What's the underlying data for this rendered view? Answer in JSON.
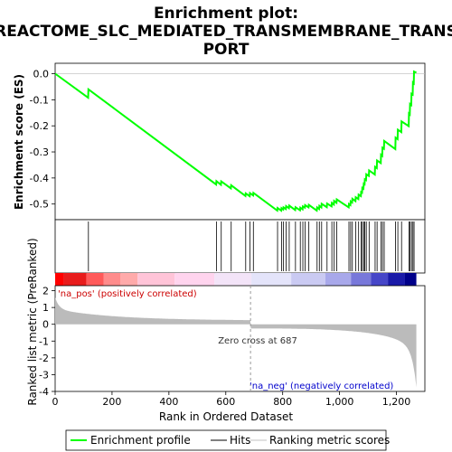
{
  "chart_data": {
    "type": "line",
    "title_line1": "Enrichment plot:",
    "title_line2": "REACTOME_SLC_MEDIATED_TRANSMEMBRANE_TRANS",
    "title_line3": "PORT",
    "xlabel": "Rank in Ordered Dataset",
    "ylabel_top": "Enrichment score (ES)",
    "ylabel_bottom": "Ranked list metric (PreRanked)",
    "xlim": [
      0,
      1300
    ],
    "x_ticks": [
      "0",
      "200",
      "400",
      "600",
      "800",
      "1,000",
      "1,200"
    ],
    "x_tick_values": [
      0,
      200,
      400,
      600,
      800,
      1000,
      1200
    ],
    "es_ylim": [
      -0.56,
      0.04
    ],
    "es_ticks": [
      "0.0",
      "-0.1",
      "-0.2",
      "-0.3",
      "-0.4",
      "-0.5"
    ],
    "es_tick_values": [
      0,
      -0.1,
      -0.2,
      -0.3,
      -0.4,
      -0.5
    ],
    "metric_ylim": [
      -4,
      2.3
    ],
    "metric_ticks": [
      "2",
      "1",
      "0",
      "-1",
      "-2",
      "-3",
      "-4"
    ],
    "metric_tick_values": [
      2,
      1,
      0,
      -1,
      -2,
      -3,
      -4
    ],
    "pos_label": "'na_pos' (positively correlated)",
    "neg_label": "'na_neg' (negatively correlated)",
    "zero_cross_label": "Zero cross at 687",
    "zero_cross": 687,
    "n_genes": 1270,
    "hits": [
      117,
      567,
      584,
      619,
      670,
      685,
      697,
      782,
      796,
      803,
      812,
      823,
      845,
      862,
      871,
      879,
      892,
      921,
      929,
      937,
      956,
      973,
      981,
      990,
      1033,
      1039,
      1045,
      1057,
      1067,
      1076,
      1080,
      1085,
      1089,
      1094,
      1104,
      1125,
      1132,
      1146,
      1151,
      1157,
      1197,
      1205,
      1218,
      1244,
      1248,
      1253,
      1258,
      1262
    ],
    "series": [
      {
        "name": "Enrichment profile",
        "color": "#00ff00"
      },
      {
        "name": "Hits",
        "color": "#000000"
      },
      {
        "name": "Ranking metric scores",
        "color": "#c0c0c0"
      }
    ],
    "es_curve_x": [
      0,
      116,
      117,
      566,
      567,
      583,
      584,
      618,
      619,
      669,
      670,
      684,
      685,
      696,
      697,
      781,
      782,
      795,
      796,
      802,
      803,
      811,
      812,
      822,
      823,
      844,
      845,
      861,
      862,
      870,
      871,
      878,
      879,
      891,
      892,
      920,
      921,
      928,
      929,
      936,
      937,
      955,
      956,
      972,
      973,
      980,
      981,
      989,
      990,
      1032,
      1033,
      1038,
      1039,
      1044,
      1045,
      1056,
      1057,
      1066,
      1067,
      1075,
      1076,
      1079,
      1080,
      1084,
      1085,
      1088,
      1089,
      1093,
      1094,
      1103,
      1104,
      1124,
      1125,
      1131,
      1132,
      1145,
      1146,
      1150,
      1151,
      1156,
      1157,
      1196,
      1197,
      1204,
      1205,
      1217,
      1218,
      1243,
      1244,
      1247,
      1248,
      1252,
      1253,
      1257,
      1258,
      1261,
      1262,
      1270
    ],
    "es_curve_y": [
      0.0,
      -0.092,
      -0.06,
      -0.425,
      -0.412,
      -0.426,
      -0.413,
      -0.44,
      -0.428,
      -0.469,
      -0.459,
      -0.47,
      -0.458,
      -0.467,
      -0.457,
      -0.525,
      -0.515,
      -0.525,
      -0.516,
      -0.521,
      -0.513,
      -0.519,
      -0.508,
      -0.516,
      -0.506,
      -0.523,
      -0.512,
      -0.524,
      -0.514,
      -0.52,
      -0.509,
      -0.514,
      -0.504,
      -0.513,
      -0.503,
      -0.525,
      -0.513,
      -0.519,
      -0.507,
      -0.513,
      -0.499,
      -0.512,
      -0.498,
      -0.509,
      -0.496,
      -0.502,
      -0.488,
      -0.495,
      -0.482,
      -0.513,
      -0.5,
      -0.504,
      -0.49,
      -0.494,
      -0.48,
      -0.489,
      -0.474,
      -0.481,
      -0.464,
      -0.47,
      -0.454,
      -0.456,
      -0.438,
      -0.441,
      -0.422,
      -0.424,
      -0.405,
      -0.408,
      -0.386,
      -0.392,
      -0.371,
      -0.387,
      -0.357,
      -0.362,
      -0.333,
      -0.343,
      -0.311,
      -0.315,
      -0.284,
      -0.288,
      -0.258,
      -0.289,
      -0.245,
      -0.251,
      -0.215,
      -0.224,
      -0.183,
      -0.201,
      -0.153,
      -0.156,
      -0.116,
      -0.12,
      -0.077,
      -0.08,
      -0.034,
      -0.037,
      0.008,
      0.004
    ]
  },
  "legend": {
    "profile": "Enrichment profile",
    "hits": "Hits",
    "metric": "Ranking metric scores"
  }
}
